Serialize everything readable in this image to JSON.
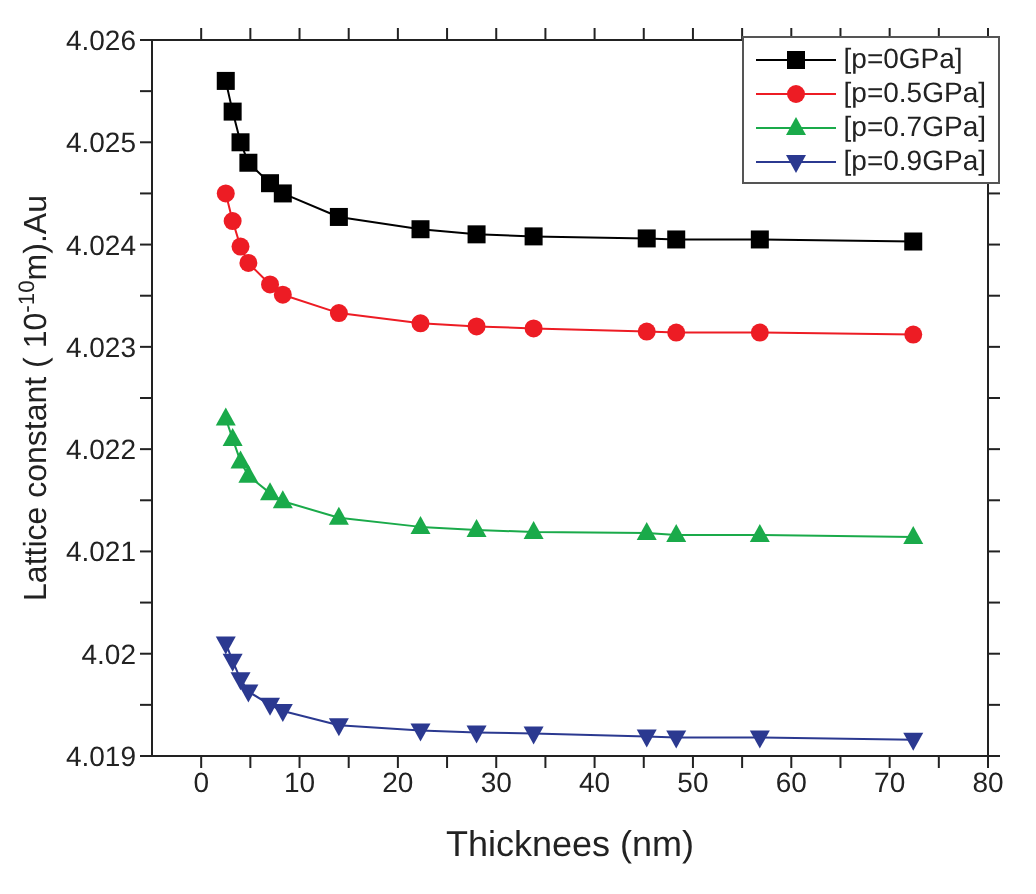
{
  "chart_data": {
    "type": "line",
    "xlabel": "Thicknees (nm)",
    "ylabel": "Lattice constant ( 10$^{-10}$m).Au",
    "x": [
      2.5,
      3.2,
      4,
      4.8,
      7,
      8.3,
      14,
      22.3,
      28,
      33.8,
      45.3,
      48.3,
      56.8,
      72.4
    ],
    "series": [
      {
        "name": "[p=0GPa]",
        "color": "#000000",
        "marker": "square",
        "values": [
          4.0256,
          4.0253,
          4.025,
          4.0248,
          4.0246,
          4.0245,
          4.02427,
          4.02415,
          4.0241,
          4.02408,
          4.02406,
          4.02405,
          4.02405,
          4.02403
        ]
      },
      {
        "name": "[p=0.5GPa]",
        "color": "#ed1c24",
        "marker": "circle",
        "values": [
          4.0245,
          4.02423,
          4.02398,
          4.02382,
          4.02361,
          4.02351,
          4.02333,
          4.02323,
          4.0232,
          4.02318,
          4.02315,
          4.02314,
          4.02314,
          4.02312
        ]
      },
      {
        "name": "[p=0.7GPa]",
        "color": "#1aaa4a",
        "marker": "triangle",
        "values": [
          4.0223,
          4.0221,
          4.02188,
          4.02174,
          4.02157,
          4.02149,
          4.02133,
          4.02124,
          4.02121,
          4.02119,
          4.02118,
          4.02116,
          4.02116,
          4.02114
        ]
      },
      {
        "name": "[p=0.9GPa]",
        "color": "#2b3990",
        "marker": "triangle-down",
        "values": [
          4.0201,
          4.01993,
          4.01975,
          4.01963,
          4.0195,
          4.01944,
          4.0193,
          4.01925,
          4.01923,
          4.01922,
          4.01919,
          4.01918,
          4.01918,
          4.01916
        ]
      }
    ],
    "xlim": [
      -5,
      80
    ],
    "xticks": [
      0,
      {
        "value": 5,
        "label": null
      },
      10,
      {
        "value": 15,
        "label": null
      },
      20,
      {
        "value": 25,
        "label": null
      },
      30,
      {
        "value": 35,
        "label": null
      },
      40,
      {
        "value": 45,
        "label": null
      },
      50,
      {
        "value": 55,
        "label": null
      },
      60,
      {
        "value": 65,
        "label": null
      },
      70,
      {
        "value": 75,
        "label": null
      },
      80
    ],
    "ylim": [
      4.019,
      4.026
    ],
    "yticks": [
      4.019,
      {
        "value": 4.0195,
        "label": null
      },
      4.02,
      {
        "value": 4.0205,
        "label": null
      },
      4.021,
      {
        "value": 4.0215,
        "label": null
      },
      4.022,
      {
        "value": 4.0225,
        "label": null
      },
      4.023,
      {
        "value": 4.0235,
        "label": null
      },
      4.024,
      {
        "value": 4.0245,
        "label": null
      },
      4.025,
      {
        "value": 4.0255,
        "label": null
      },
      4.026
    ],
    "legend": "top right",
    "line_style": "solid"
  }
}
